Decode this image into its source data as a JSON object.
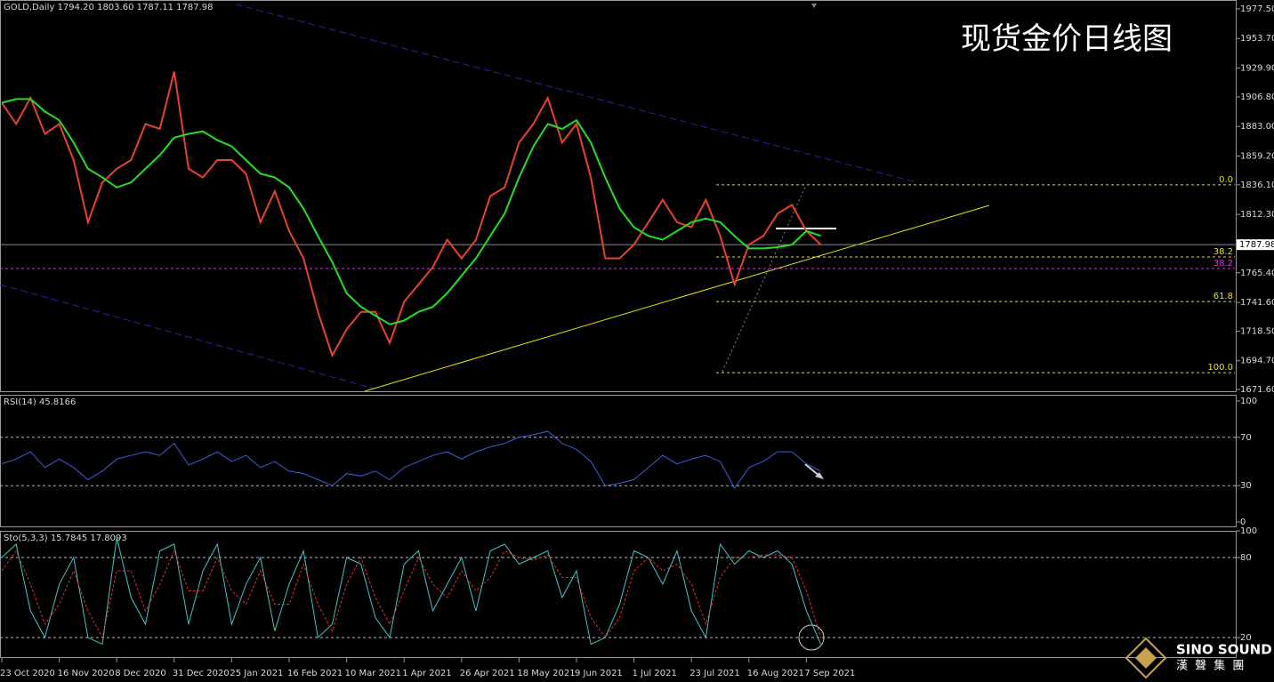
{
  "title": "现货金价日线图",
  "logo": {
    "name": "SINO SOUND",
    "subtitle": "漢 聲 集 團"
  },
  "chart_data": [
    {
      "type": "line",
      "title": "GOLD,Daily  1794.20 1803.60 1787.11 1787.98",
      "categories": [
        "23 Oct 2020",
        null,
        null,
        null,
        "16 Nov 2020",
        null,
        null,
        null,
        "8 Dec 2020",
        null,
        null,
        null,
        "31 Dec 2020",
        null,
        null,
        null,
        "25 Jan 2021",
        null,
        null,
        null,
        "16 Feb 2021",
        null,
        null,
        null,
        "10 Mar 2021",
        null,
        null,
        null,
        "1 Apr 2021",
        null,
        null,
        null,
        "26 Apr 2021",
        null,
        null,
        null,
        "18 May 2021",
        null,
        null,
        null,
        "9 Jun 2021",
        null,
        null,
        null,
        "1 Jul 2021",
        null,
        null,
        null,
        "23 Jul 2021",
        null,
        null,
        null,
        "16 Aug 2021",
        null,
        null,
        null,
        "7 Sep 2021",
        null
      ],
      "series": [
        {
          "color": "#e8432e",
          "values": [
            1902,
            1885,
            1906,
            1877,
            1885,
            1856,
            1806,
            1838,
            1849,
            1856,
            1885,
            1881,
            1927,
            1849,
            1842,
            1856,
            1856,
            1845,
            1806,
            1831,
            1799,
            1777,
            1734,
            1699,
            1720,
            1734,
            1734,
            1709,
            1742,
            1756,
            1770,
            1792,
            1777,
            1792,
            1827,
            1834,
            1870,
            1885,
            1906,
            1870,
            1885,
            1842,
            1777,
            1777,
            1788,
            1806,
            1824,
            1806,
            1802,
            1824,
            1795,
            1756,
            1788,
            1795,
            1813,
            1820,
            1799,
            1788
          ]
        },
        {
          "color": "#22e022",
          "values": [
            1902,
            1905,
            1905,
            1895,
            1888,
            1870,
            1849,
            1842,
            1834,
            1838,
            1849,
            1860,
            1874,
            1877,
            1879,
            1872,
            1867,
            1856,
            1845,
            1842,
            1834,
            1817,
            1795,
            1774,
            1749,
            1738,
            1731,
            1724,
            1727,
            1734,
            1738,
            1749,
            1763,
            1777,
            1795,
            1813,
            1842,
            1867,
            1885,
            1881,
            1888,
            1870,
            1842,
            1817,
            1802,
            1795,
            1792,
            1799,
            1806,
            1809,
            1806,
            1795,
            1785,
            1785,
            1786,
            1788,
            1799,
            1795
          ]
        }
      ],
      "ylim": [
        1669.5,
        1984.6
      ],
      "yticks": [
        {
          "value": 1977.5,
          "label": "1977.50"
        },
        {
          "value": 1953.7,
          "label": "1953.70"
        },
        {
          "value": 1929.9,
          "label": "1929.90"
        },
        {
          "value": 1906.8,
          "label": "1906.80"
        },
        {
          "value": 1883.0,
          "label": "1883.00"
        },
        {
          "value": 1859.2,
          "label": "1859.20"
        },
        {
          "value": 1836.1,
          "label": "1836.10"
        },
        {
          "value": 1812.3,
          "label": "1812.30"
        },
        {
          "value": 1765.4,
          "label": "1765.40"
        },
        {
          "value": 1741.6,
          "label": "1741.60"
        },
        {
          "value": 1718.5,
          "label": "1718.50"
        },
        {
          "value": 1694.7,
          "label": "1694.70"
        },
        {
          "value": 1671.6,
          "label": "1671.60"
        }
      ],
      "last_price": 1787.98,
      "fib_levels": [
        {
          "label": "0.0",
          "price": 1836.1,
          "color": "#e6e600"
        },
        {
          "label": "38.2",
          "price": 1778.1,
          "color": "#e6e600"
        },
        {
          "label": "38.2",
          "price": 1768.8,
          "color": "#d040d0"
        },
        {
          "label": "61.8",
          "price": 1742.3,
          "color": "#e6e600"
        },
        {
          "label": "100.0",
          "price": 1685.1,
          "color": "#e6e600"
        }
      ]
    },
    {
      "type": "line",
      "title": "RSI(14) 45.8166",
      "series": [
        {
          "color": "#3a5fd9",
          "values": [
            48,
            52,
            58,
            45,
            52,
            45,
            35,
            42,
            52,
            55,
            58,
            55,
            65,
            47,
            52,
            58,
            50,
            55,
            45,
            50,
            42,
            40,
            35,
            30,
            40,
            38,
            42,
            35,
            45,
            50,
            55,
            58,
            52,
            58,
            62,
            65,
            70,
            72,
            75,
            65,
            60,
            50,
            30,
            32,
            35,
            45,
            55,
            48,
            52,
            55,
            50,
            28,
            45,
            50,
            58,
            58,
            48,
            42
          ]
        }
      ],
      "ylim": [
        -4.4,
        105.1
      ],
      "yticks": [
        0,
        30,
        70,
        100
      ],
      "levels": [
        30,
        70
      ]
    },
    {
      "type": "line",
      "title": "Sto(5,3,3) 15.7845 17.8093",
      "series": [
        {
          "color": "#40c8c8",
          "values": [
            80,
            90,
            40,
            20,
            60,
            80,
            20,
            15,
            95,
            50,
            30,
            85,
            90,
            30,
            70,
            90,
            30,
            60,
            80,
            25,
            60,
            85,
            20,
            30,
            80,
            75,
            35,
            20,
            75,
            85,
            40,
            60,
            80,
            40,
            85,
            90,
            75,
            80,
            85,
            50,
            70,
            15,
            20,
            45,
            85,
            80,
            60,
            85,
            40,
            20,
            90,
            75,
            85,
            80,
            85,
            75,
            40,
            15
          ]
        },
        {
          "color": "#e03030",
          "dash": true,
          "values": [
            70,
            85,
            60,
            30,
            45,
            70,
            40,
            20,
            70,
            70,
            40,
            60,
            85,
            55,
            55,
            80,
            55,
            45,
            70,
            45,
            45,
            75,
            45,
            25,
            60,
            80,
            50,
            30,
            55,
            80,
            60,
            50,
            70,
            55,
            65,
            85,
            80,
            78,
            82,
            65,
            65,
            35,
            20,
            35,
            70,
            80,
            70,
            75,
            60,
            30,
            65,
            80,
            80,
            82,
            82,
            80,
            55,
            20
          ]
        }
      ],
      "ylim": [
        4.7,
        100
      ],
      "yticks": [
        20,
        80,
        100
      ],
      "levels": [
        20,
        80
      ]
    }
  ]
}
